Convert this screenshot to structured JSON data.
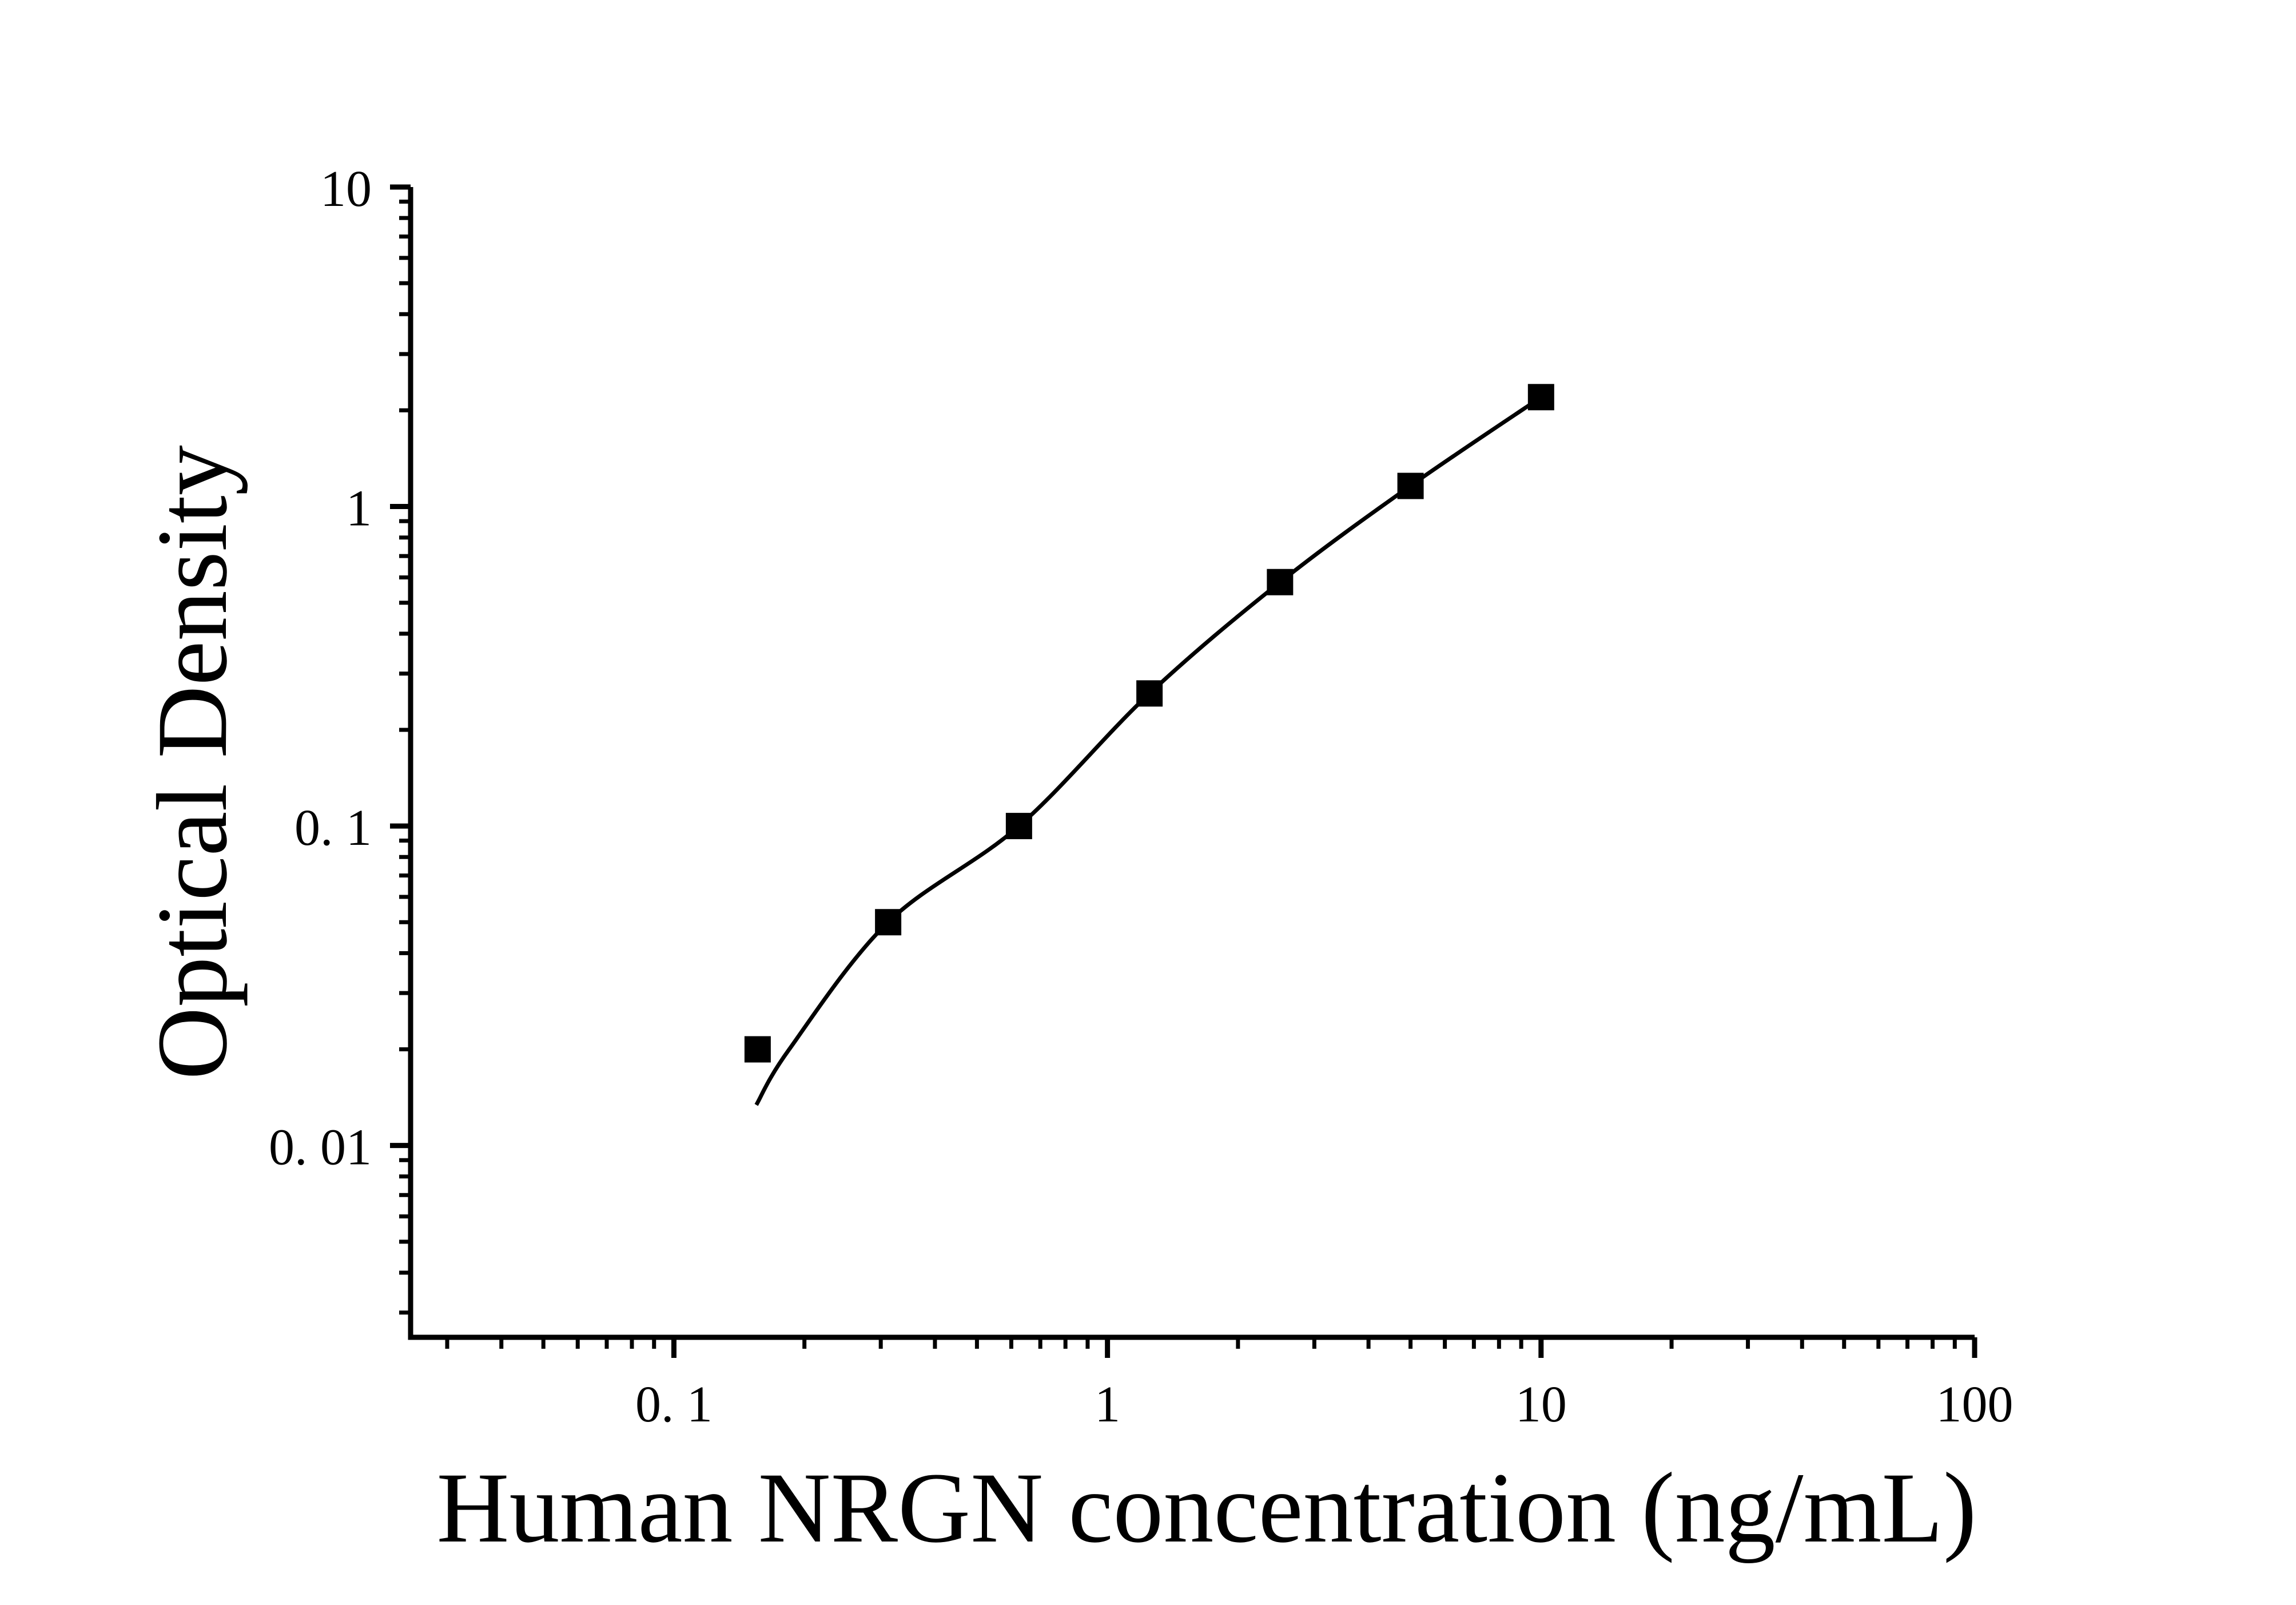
{
  "figure": {
    "background_color": "#ffffff",
    "foreground_color": "#000000"
  },
  "chart_data": {
    "type": "scatter",
    "title": "",
    "xlabel": "Human NRGN concentration (ng/mL)",
    "ylabel": "Optical Density",
    "x_scale": "log",
    "y_scale": "log",
    "xlim": [
      0.0247,
      100
    ],
    "ylim": [
      0.00251,
      10
    ],
    "x_ticks": [
      0.1,
      1,
      10,
      100
    ],
    "x_tick_labels": [
      "0. 1",
      "1",
      "10",
      "100"
    ],
    "y_ticks": [
      0.01,
      0.1,
      1,
      10
    ],
    "y_tick_labels": [
      "0. 01",
      "0. 1",
      "1",
      "10"
    ],
    "grid": "off",
    "legend": "none",
    "series": [
      {
        "name": "standard-points",
        "marker": "filled-square",
        "color": "#000000",
        "points": [
          {
            "x": 0.156,
            "y": 0.02
          },
          {
            "x": 0.312,
            "y": 0.05
          },
          {
            "x": 0.625,
            "y": 0.1
          },
          {
            "x": 1.25,
            "y": 0.26
          },
          {
            "x": 2.5,
            "y": 0.58
          },
          {
            "x": 5,
            "y": 1.16
          },
          {
            "x": 10,
            "y": 2.2
          }
        ]
      }
    ],
    "fit_curve": {
      "name": "4pl-fit-curve",
      "color": "#000000",
      "points_loglog": [
        [
          -0.81,
          -1.873
        ],
        [
          -0.734,
          -1.699
        ],
        [
          -0.506,
          -1.301
        ],
        [
          -0.204,
          -1.0
        ],
        [
          0.097,
          -0.585
        ],
        [
          0.398,
          -0.237
        ],
        [
          0.699,
          0.065
        ],
        [
          1.0,
          0.342
        ]
      ]
    }
  }
}
